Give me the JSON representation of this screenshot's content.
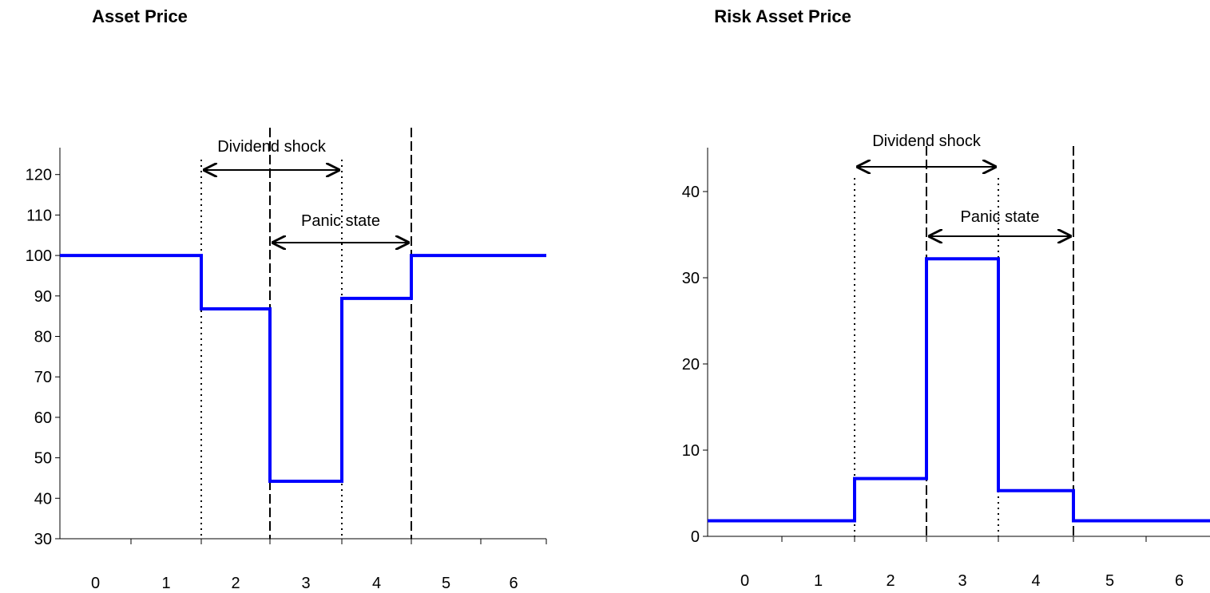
{
  "chart_data": [
    {
      "type": "line",
      "title": "Asset Price",
      "categories": [
        "0",
        "1",
        "2",
        "3",
        "4",
        "5",
        "6"
      ],
      "series": [
        {
          "values": [
            100,
            100,
            86.8,
            44.2,
            89.4,
            100,
            100
          ]
        }
      ],
      "yticks": [
        30,
        40,
        50,
        60,
        70,
        80,
        90,
        100,
        110,
        120
      ],
      "ylim": [
        30,
        125
      ],
      "step": true,
      "grid": false,
      "annotations": [
        {
          "text": "Dividend shock",
          "from": "2",
          "to": "3"
        },
        {
          "text": "Panic state",
          "from": "3",
          "to": "4"
        }
      ],
      "color": "#0000ff"
    },
    {
      "type": "line",
      "title": "Risk Asset Price",
      "categories": [
        "0",
        "1",
        "2",
        "3",
        "4",
        "5",
        "6"
      ],
      "series": [
        {
          "values": [
            1.8,
            1.8,
            6.7,
            32.2,
            5.3,
            1.8,
            1.8
          ]
        }
      ],
      "yticks": [
        0,
        10,
        20,
        30,
        40
      ],
      "ylim": [
        0,
        45
      ],
      "step": true,
      "grid": false,
      "annotations": [
        {
          "text": "Dividend shock",
          "from": "2",
          "to": "3"
        },
        {
          "text": "Panic state",
          "from": "3",
          "to": "4"
        }
      ],
      "color": "#0000ff"
    }
  ]
}
